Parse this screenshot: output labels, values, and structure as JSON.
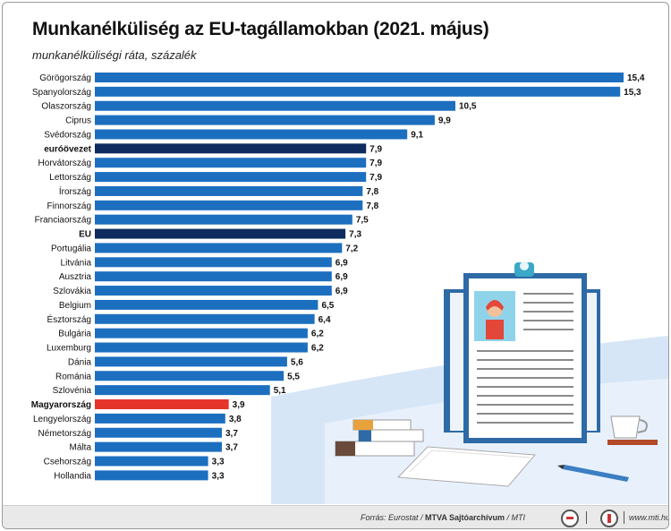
{
  "title": "Munkanélküliség az EU-tagállamokban (2021. május)",
  "subtitle": "munkanélküliségi ráta, százalék",
  "footer": {
    "source_prefix": "Forrás: Eurostat / ",
    "source_bold": "MTVA Sajtóarchívum",
    "source_suffix": " / MTI",
    "url": "www.mti.hu"
  },
  "colors": {
    "default": "#1c6fbf",
    "aggregate": "#0d2b5e",
    "highlight": "#e5352b",
    "illustration_backdrop": "#cfe0f5"
  },
  "illustration_icons": [
    "clipboard-icon",
    "book-stack-icon",
    "coffee-cup-icon",
    "paper-icon",
    "pencil-icon"
  ],
  "chart_data": {
    "type": "bar",
    "orientation": "horizontal",
    "categories": [
      "Görögország",
      "Spanyolország",
      "Olaszország",
      "Ciprus",
      "Svédország",
      "euróövezet",
      "Horvátország",
      "Lettország",
      "Írország",
      "Finnország",
      "Franciaország",
      "EU",
      "Portugália",
      "Litvánia",
      "Ausztria",
      "Szlovákia",
      "Belgium",
      "Észtország",
      "Bulgária",
      "Luxemburg",
      "Dánia",
      "Románia",
      "Szlovénia",
      "Magyarország",
      "Lengyelország",
      "Németország",
      "Málta",
      "Csehország",
      "Hollandia"
    ],
    "values": [
      15.4,
      15.3,
      10.5,
      9.9,
      9.1,
      7.9,
      7.9,
      7.9,
      7.8,
      7.8,
      7.5,
      7.3,
      7.2,
      6.9,
      6.9,
      6.9,
      6.5,
      6.4,
      6.2,
      6.2,
      5.6,
      5.5,
      5.1,
      3.9,
      3.8,
      3.7,
      3.7,
      3.3,
      3.3
    ],
    "value_labels": [
      "15,4",
      "15,3",
      "10,5",
      "9,9",
      "9,1",
      "7,9",
      "7,9",
      "7,9",
      "7,8",
      "7,8",
      "7,5",
      "7,3",
      "7,2",
      "6,9",
      "6,9",
      "6,9",
      "6,5",
      "6,4",
      "6,2",
      "6,2",
      "5,6",
      "5,5",
      "5,1",
      "3,9",
      "3,8",
      "3,7",
      "3,7",
      "3,3",
      "3,3"
    ],
    "bold_categories": [
      "euróövezet",
      "EU",
      "Magyarország"
    ],
    "aggregate_categories": [
      "euróövezet",
      "EU"
    ],
    "highlight_category": "Magyarország",
    "xlim": [
      0,
      15.4
    ],
    "grid": false,
    "legend": "none"
  }
}
